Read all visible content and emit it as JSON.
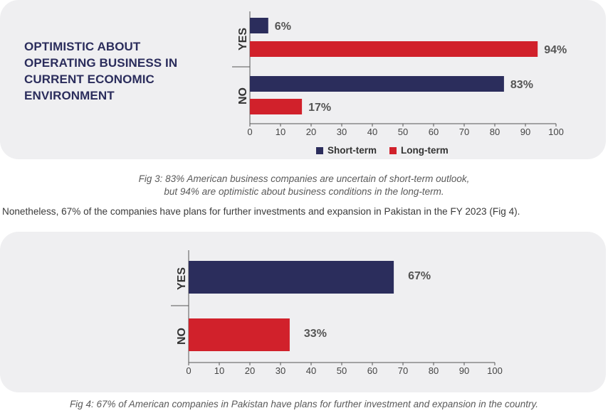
{
  "colors": {
    "short": "#2b2d5c",
    "long": "#d1212b",
    "axis": "#555555",
    "panel": "#efeff1"
  },
  "fig3": {
    "title": "OPTIMISTIC ABOUT OPERATING BUSINESS IN CURRENT ECONOMIC ENVIRONMENT",
    "caption_line1": "Fig 3: 83% American business companies are uncertain of short-term outlook,",
    "caption_line2": "but 94% are optimistic about business conditions in the long-term.",
    "legend": [
      {
        "label": "Short-term",
        "color": "#2b2d5c"
      },
      {
        "label": "Long-term",
        "color": "#d1212b"
      }
    ]
  },
  "paragraph": "Nonetheless, 67% of the companies have plans for further investments and expansion in Pakistan in the FY 2023 (Fig 4).",
  "fig4": {
    "caption": "Fig 4: 67% of American companies in Pakistan have plans for further investment and expansion in the country."
  },
  "chart_data": [
    {
      "type": "bar",
      "orientation": "horizontal",
      "categories": [
        "YES",
        "NO"
      ],
      "series": [
        {
          "name": "Short-term",
          "values": [
            6,
            83
          ],
          "labels": [
            "6%",
            "83%"
          ]
        },
        {
          "name": "Long-term",
          "values": [
            94,
            17
          ],
          "labels": [
            "94%",
            "17%"
          ]
        }
      ],
      "xlim": [
        0,
        100
      ],
      "xticks": [
        0,
        10,
        20,
        30,
        40,
        50,
        60,
        70,
        80,
        90,
        100
      ],
      "legend_position": "bottom",
      "grid": false
    },
    {
      "type": "bar",
      "orientation": "horizontal",
      "categories": [
        "YES",
        "NO"
      ],
      "values": [
        67,
        33
      ],
      "labels": [
        "67%",
        "33%"
      ],
      "xlim": [
        0,
        100
      ],
      "xticks": [
        0,
        10,
        20,
        30,
        40,
        50,
        60,
        70,
        80,
        90,
        100
      ],
      "grid": false
    }
  ]
}
